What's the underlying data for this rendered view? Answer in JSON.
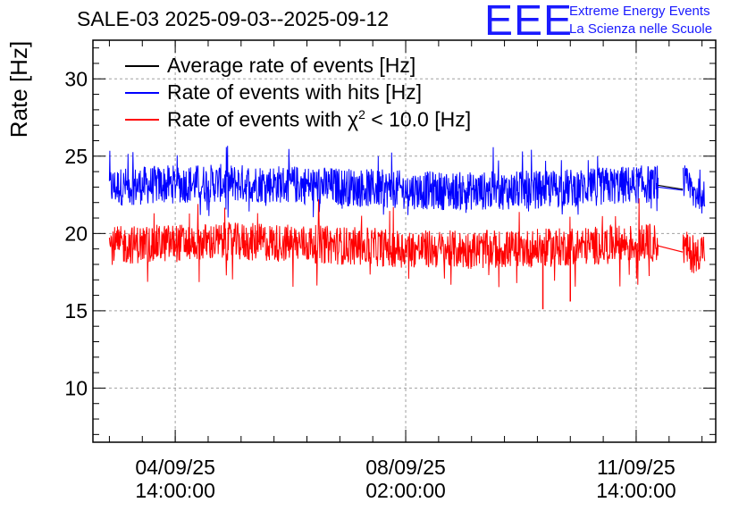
{
  "title": "SALE-03 2025-09-03--2025-09-12",
  "logo": {
    "mark": "EEE",
    "line1": "Extreme Energy Events",
    "line2": "La Scienza nelle Scuole"
  },
  "colors": {
    "avg": "#000000",
    "hits": "#0000ff",
    "chi2": "#ff0000",
    "grid": "#a0a0a0",
    "logo": "#1a1aff"
  },
  "chart_data": {
    "type": "line",
    "title": "SALE-03 2025-09-03--2025-09-12",
    "ylabel": "Rate [Hz]",
    "xlabel": "",
    "ylim": [
      6.5,
      32.5
    ],
    "yticks": [
      10,
      15,
      20,
      25,
      30
    ],
    "x_time_range": [
      "2025-09-03 08:00:00",
      "2025-09-12 19:00:00"
    ],
    "xticks": [
      {
        "time": "2025-09-04 14:00:00",
        "label_top": "04/09/25",
        "label_bottom": "14:00:00"
      },
      {
        "time": "2025-09-08 02:00:00",
        "label_top": "08/09/25",
        "label_bottom": "02:00:00"
      },
      {
        "time": "2025-09-11 14:00:00",
        "label_top": "11/09/25",
        "label_bottom": "14:00:00"
      }
    ],
    "grid": true,
    "legend_position": "top-left",
    "legend": [
      {
        "key": "avg",
        "label": "Average rate of events [Hz]"
      },
      {
        "key": "hits",
        "label": "Rate of events with hits [Hz]"
      },
      {
        "key": "chi2",
        "label_pre": "Rate of events with ",
        "label_chi": "χ",
        "label_sup": "2",
        "label_post": " < 10.0 [Hz]"
      }
    ],
    "series": [
      {
        "key": "hits",
        "name": "Rate of events with hits [Hz]",
        "segments": [
          {
            "start": "2025-09-03 14:00:00",
            "end": "2025-09-11 22:00:00",
            "mean": 23.0,
            "band_low": 21.8,
            "band_high": 24.3,
            "peak_high": 25.7,
            "peak_low": 21.0
          },
          {
            "start": "2025-09-12 07:00:00",
            "end": "2025-09-12 15:00:00",
            "mean": 22.8,
            "band_low": 21.6,
            "band_high": 24.2,
            "peak_high": 24.5,
            "peak_low": 21.0
          }
        ]
      },
      {
        "key": "avg",
        "name": "Average rate of events [Hz]",
        "segments": [
          {
            "start": "2025-09-03 14:00:00",
            "end": "2025-09-11 22:00:00",
            "mean": 23.0,
            "band_low": 21.8,
            "band_high": 24.3,
            "peak_high": 25.7,
            "peak_low": 21.0
          },
          {
            "start": "2025-09-12 07:00:00",
            "end": "2025-09-12 15:00:00",
            "mean": 22.8,
            "band_low": 21.6,
            "band_high": 24.2,
            "peak_high": 24.5,
            "peak_low": 21.0
          }
        ]
      },
      {
        "key": "chi2",
        "name": "Rate of events with χ2 < 10.0 [Hz]",
        "segments": [
          {
            "start": "2025-09-03 14:00:00",
            "end": "2025-09-11 22:00:00",
            "mean": 19.2,
            "band_low": 18.0,
            "band_high": 20.5,
            "peak_high": 22.3,
            "peak_low": 16.5,
            "dips": [
              {
                "time": "2025-09-10 04:00:00",
                "value": 15.1
              },
              {
                "time": "2025-09-10 14:00:00",
                "value": 15.6
              }
            ]
          },
          {
            "start": "2025-09-12 07:00:00",
            "end": "2025-09-12 15:00:00",
            "mean": 18.8,
            "band_low": 17.7,
            "band_high": 20.0,
            "peak_high": 20.5,
            "peak_low": 17.1
          }
        ]
      }
    ]
  }
}
